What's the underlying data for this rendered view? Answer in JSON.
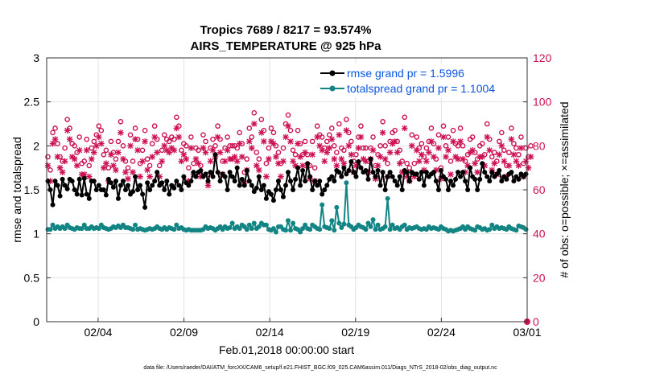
{
  "colors": {
    "rmse": "#000000",
    "spread": "#138484",
    "obs": "#cc1155",
    "legend_text": "#0a55e0",
    "grid": "#e2e2e2"
  },
  "chart_data": {
    "type": "line",
    "title": [
      "Tropics 7689 / 8217 = 93.574%",
      "AIRS_TEMPERATURE @ 925 hPa"
    ],
    "xlabel": "Feb.01,2018 00:00:00 start",
    "ylabel_left": "rmse and totalspread",
    "ylabel_right": "# of obs: o=possible; ×=assimilated",
    "x_tick_labels": [
      "02/04",
      "02/09",
      "02/14",
      "02/19",
      "02/24",
      "03/01"
    ],
    "x_tick_days": [
      3,
      8,
      13,
      18,
      23,
      28
    ],
    "xlim_days": [
      0,
      28
    ],
    "ylim_left": [
      0,
      3
    ],
    "yticks_left": [
      "0",
      "0.5",
      "1",
      "1.5",
      "2",
      "2.5",
      "3"
    ],
    "ylim_right": [
      0,
      120
    ],
    "yticks_right": [
      "0",
      "20",
      "40",
      "60",
      "80",
      "100",
      "120"
    ],
    "legend": [
      "rmse grand pr = 1.5996",
      "totalspread grand pr = 1.1004"
    ],
    "footer": "data file: /Users/raeder/DAI/ATM_forcXX/CAM6_setup/f.e21.FHIST_BGC.f09_025.CAM6assim.011/Diags_NTrS_2018-02/obs_diag_output.nc",
    "series": [
      {
        "name": "rmse",
        "values": [
          1.6,
          1.5,
          1.33,
          1.6,
          1.55,
          1.43,
          1.62,
          1.55,
          1.51,
          1.62,
          1.6,
          1.5,
          1.45,
          1.62,
          1.44,
          1.63,
          1.45,
          1.4,
          1.6,
          1.6,
          1.5,
          1.55,
          1.5,
          1.5,
          1.44,
          1.62,
          1.58,
          1.53,
          1.6,
          1.4,
          1.55,
          1.6,
          1.5,
          1.55,
          1.45,
          1.48,
          1.65,
          1.5,
          1.55,
          1.45,
          1.3,
          1.58,
          1.5,
          1.55,
          1.6,
          1.7,
          1.55,
          1.58,
          1.5,
          1.6,
          1.45,
          1.55,
          1.52,
          1.6,
          1.55,
          1.5,
          1.65,
          1.58,
          1.55,
          1.6,
          1.7,
          1.65,
          1.7,
          1.72,
          1.65,
          1.68,
          1.6,
          1.7,
          1.65,
          1.9,
          1.7,
          1.6,
          1.68,
          1.65,
          1.5,
          1.7,
          1.65,
          1.6,
          1.75,
          1.55,
          1.62,
          1.55,
          1.72,
          1.6,
          1.55,
          1.48,
          1.52,
          1.65,
          1.5,
          1.55,
          1.4,
          1.48,
          1.45,
          1.38,
          1.5,
          1.6,
          1.5,
          1.42,
          1.55,
          1.7,
          1.6,
          1.5,
          1.62,
          1.75,
          1.55,
          1.72,
          1.6,
          1.8,
          1.65,
          1.5,
          1.6,
          1.55,
          1.6,
          1.45,
          1.5,
          1.55,
          1.62,
          1.65,
          1.6,
          1.72,
          1.7,
          1.65,
          1.75,
          1.68,
          1.72,
          1.82,
          1.7,
          1.65,
          1.82,
          1.75,
          1.7,
          1.72,
          1.62,
          1.85,
          1.7,
          1.65,
          1.72,
          1.55,
          1.7,
          1.5,
          1.65,
          1.7,
          1.65,
          1.6,
          1.55,
          1.65,
          1.5,
          1.72,
          1.7,
          1.6,
          1.7,
          1.68,
          1.68,
          1.62,
          1.7,
          1.55,
          1.7,
          1.65,
          1.68,
          1.7,
          1.6,
          1.5,
          1.72,
          1.65,
          1.62,
          1.5,
          1.6,
          1.55,
          1.62,
          1.7,
          1.65,
          1.7,
          1.6,
          1.5,
          1.75,
          1.65,
          1.62,
          1.5,
          1.62,
          1.8,
          1.7,
          1.65,
          1.6,
          1.7,
          1.65,
          1.68,
          1.72,
          1.6,
          1.65,
          1.62,
          1.68,
          1.7,
          1.6,
          1.65,
          1.62,
          1.68,
          1.65,
          1.68
        ]
      },
      {
        "name": "totalspread",
        "values": [
          1.05,
          1.05,
          1.1,
          1.06,
          1.08,
          1.06,
          1.08,
          1.06,
          1.1,
          1.07,
          1.06,
          1.05,
          1.07,
          1.06,
          1.06,
          1.1,
          1.06,
          1.06,
          1.08,
          1.06,
          1.07,
          1.06,
          1.1,
          1.07,
          1.06,
          1.05,
          1.06,
          1.08,
          1.07,
          1.09,
          1.07,
          1.1,
          1.07,
          1.07,
          1.06,
          1.05,
          1.1,
          1.05,
          1.06,
          1.05,
          1.04,
          1.05,
          1.06,
          1.05,
          1.06,
          1.08,
          1.06,
          1.05,
          1.07,
          1.05,
          1.07,
          1.06,
          1.05,
          1.1,
          1.06,
          1.07,
          1.05,
          1.04,
          1.05,
          1.04,
          1.04,
          1.04,
          1.04,
          1.04,
          1.05,
          1.08,
          1.06,
          1.07,
          1.06,
          1.04,
          1.06,
          1.08,
          1.05,
          1.08,
          1.06,
          1.07,
          1.12,
          1.06,
          1.08,
          1.06,
          1.1,
          1.08,
          1.05,
          1.1,
          1.06,
          1.12,
          1.06,
          1.08,
          1.12,
          1.1,
          1.1,
          1.05,
          1.04,
          1.06,
          1.02,
          1.08,
          1.08,
          1.05,
          1.04,
          1.15,
          1.04,
          1.12,
          1.06,
          1.05,
          1.02,
          1.06,
          1.1,
          1.06,
          1.05,
          1.1,
          1.08,
          1.06,
          1.05,
          1.33,
          1.08,
          1.07,
          1.06,
          1.15,
          1.04,
          1.3,
          1.12,
          1.07,
          1.11,
          1.58,
          1.1,
          1.08,
          1.05,
          1.07,
          1.1,
          1.08,
          1.07,
          1.05,
          1.12,
          1.08,
          1.16,
          1.05,
          1.1,
          1.05,
          1.06,
          1.08,
          1.4,
          1.05,
          1.1,
          1.06,
          1.07,
          1.05,
          1.08,
          1.1,
          1.05,
          1.07,
          1.06,
          1.07,
          1.08,
          1.06,
          1.05,
          1.06,
          1.05,
          1.08,
          1.06,
          1.07,
          1.06,
          1.05,
          1.08,
          1.06,
          1.05,
          1.03,
          1.04,
          1.03,
          1.04,
          1.05,
          1.06,
          1.08,
          1.05,
          1.08,
          1.06,
          1.05,
          1.04,
          1.08,
          1.07,
          1.05,
          1.06,
          1.04,
          1.05,
          1.1,
          1.06,
          1.08,
          1.06,
          1.07,
          1.06,
          1.05,
          1.08,
          1.06,
          1.05,
          1.04,
          1.09,
          1.08,
          1.07,
          1.05
        ]
      },
      {
        "name": "possible obs (o)",
        "axis": "right",
        "values": [
          75,
          69,
          86,
          88,
          81,
          75,
          73,
          79,
          92,
          88,
          81,
          80,
          77,
          84,
          72,
          73,
          83,
          71,
          79,
          82,
          85,
          89,
          87,
          76,
          78,
          70,
          82,
          77,
          74,
          82,
          91,
          80,
          73,
          70,
          85,
          73,
          88,
          83,
          72,
          78,
          87,
          74,
          71,
          81,
          89,
          83,
          71,
          78,
          85,
          83,
          82,
          84,
          83,
          93,
          89,
          78,
          81,
          80,
          70,
          84,
          72,
          79,
          78,
          71,
          85,
          82,
          67,
          79,
          83,
          80,
          89,
          83,
          73,
          79,
          84,
          80,
          80,
          80,
          79,
          86,
          81,
          68,
          74,
          88,
          84,
          95,
          77,
          74,
          92,
          87,
          72,
          79,
          88,
          86,
          80,
          77,
          72,
          79,
          90,
          94,
          87,
          78,
          76,
          87,
          81,
          76,
          82,
          76,
          71,
          82,
          70,
          89,
          85,
          84,
          79,
          82,
          85,
          88,
          80,
          77,
          90,
          79,
          78,
          92,
          86,
          82,
          73,
          76,
          84,
          89,
          79,
          79,
          73,
          79,
          84,
          71,
          76,
          80,
          91,
          80,
          72,
          82,
          86,
          87,
          82,
          78,
          73,
          93,
          72,
          70,
          85,
          72,
          84,
          79,
          81,
          75,
          79,
          82,
          88,
          81,
          74,
          85,
          70,
          89,
          80,
          84,
          73,
          87,
          81,
          80,
          88,
          80,
          73,
          76,
          83,
          84,
          77,
          74,
          80,
          81,
          76,
          90,
          83,
          75,
          77,
          73,
          82,
          86,
          78,
          71,
          77,
          88,
          81,
          79,
          76,
          84,
          72,
          79,
          75,
          80
        ]
      },
      {
        "name": "assimilated obs (×)",
        "axis": "right",
        "values": [
          71,
          64,
          81,
          83,
          75,
          70,
          68,
          73,
          87,
          83,
          75,
          74,
          71,
          78,
          67,
          67,
          78,
          66,
          74,
          77,
          80,
          84,
          81,
          70,
          72,
          64,
          76,
          71,
          69,
          77,
          86,
          74,
          68,
          65,
          80,
          68,
          83,
          78,
          66,
          73,
          82,
          69,
          66,
          75,
          84,
          77,
          66,
          73,
          80,
          78,
          77,
          79,
          78,
          88,
          84,
          73,
          76,
          74,
          64,
          79,
          67,
          74,
          72,
          66,
          79,
          77,
          62,
          73,
          78,
          75,
          84,
          77,
          67,
          73,
          78,
          74,
          74,
          75,
          73,
          81,
          75,
          63,
          69,
          82,
          79,
          90,
          71,
          69,
          86,
          82,
          66,
          74,
          82,
          81,
          75,
          72,
          66,
          73,
          84,
          89,
          82,
          73,
          71,
          81,
          75,
          71,
          77,
          71,
          65,
          76,
          64,
          84,
          80,
          78,
          73,
          77,
          79,
          83,
          74,
          71,
          85,
          74,
          72,
          87,
          80,
          76,
          68,
          71,
          79,
          84,
          74,
          73,
          68,
          74,
          78,
          65,
          71,
          75,
          86,
          74,
          66,
          77,
          81,
          82,
          77,
          72,
          68,
          88,
          66,
          64,
          80,
          66,
          78,
          73,
          76,
          69,
          73,
          77,
          82,
          75,
          69,
          79,
          65,
          84,
          75,
          78,
          67,
          82,
          75,
          74,
          82,
          74,
          68,
          71,
          77,
          78,
          72,
          68,
          75,
          75,
          71,
          84,
          78,
          69,
          72,
          67,
          76,
          80,
          73,
          66,
          71,
          83,
          76,
          73,
          71,
          79,
          66,
          73,
          70,
          75
        ]
      }
    ]
  }
}
